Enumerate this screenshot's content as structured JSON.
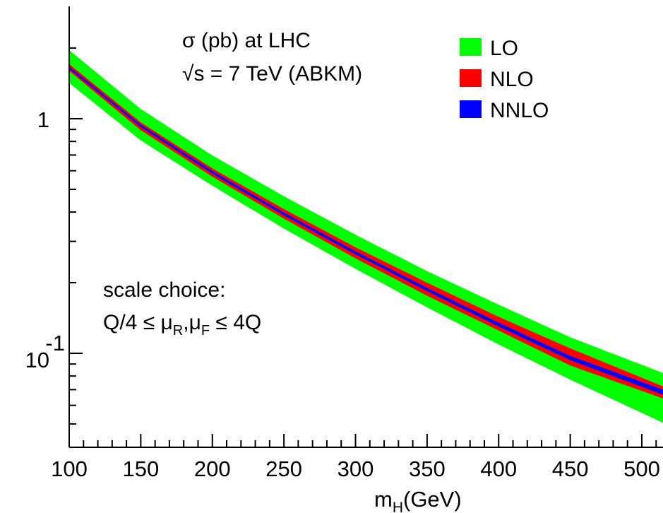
{
  "chart_data": {
    "type": "area",
    "xlabel": "m",
    "xlabel_sub": "H",
    "xlabel_unit": "(GeV)",
    "xlim": [
      100,
      515
    ],
    "ylim": [
      0.05,
      2.5
    ],
    "yscale": "log",
    "x_ticks": [
      "100",
      "150",
      "200",
      "250",
      "300",
      "350",
      "400",
      "450",
      "500"
    ],
    "x_tick_values": [
      100,
      150,
      200,
      250,
      300,
      350,
      400,
      450,
      500
    ],
    "y_ticks": [
      {
        "value": 1,
        "base": "1",
        "exp": ""
      },
      {
        "value": 0.1,
        "base": "10",
        "exp": "-1"
      }
    ],
    "annotations": {
      "line1": "σ (pb) at LHC",
      "line2": "√s = 7 TeV (ABKM)",
      "scale_title": "scale choice:",
      "scale_eq": {
        "q4": "Q/4 ≤ μ",
        "sub_r": "R",
        "comma_mu": ",μ",
        "sub_f": "F",
        "rest": " ≤ 4Q"
      }
    },
    "legend_position": "top-right",
    "series": [
      {
        "name": "LO",
        "color": "#00ff00",
        "x": [
          100,
          150,
          200,
          250,
          300,
          350,
          400,
          450,
          515
        ],
        "lower": [
          1.42,
          0.808,
          0.518,
          0.34,
          0.229,
          0.157,
          0.109,
          0.0772,
          0.0505
        ],
        "upper": [
          1.96,
          1.1,
          0.697,
          0.467,
          0.32,
          0.224,
          0.161,
          0.117,
          0.0823
        ]
      },
      {
        "name": "NLO",
        "color": "#ff0000",
        "x": [
          100,
          150,
          200,
          250,
          300,
          350,
          400,
          450,
          515
        ],
        "lower": [
          1.6,
          0.893,
          0.566,
          0.375,
          0.254,
          0.176,
          0.125,
          0.0887,
          0.0641
        ],
        "upper": [
          1.71,
          0.965,
          0.614,
          0.412,
          0.283,
          0.2,
          0.143,
          0.105,
          0.0722
        ]
      },
      {
        "name": "NNLO",
        "color": "#0000ff",
        "x": [
          100,
          150,
          200,
          250,
          300,
          350,
          400,
          450,
          515
        ],
        "lower": [
          1.63,
          0.92,
          0.582,
          0.387,
          0.264,
          0.184,
          0.13,
          0.0935,
          0.0665
        ],
        "upper": [
          1.67,
          0.944,
          0.599,
          0.398,
          0.272,
          0.19,
          0.135,
          0.0974,
          0.0698
        ]
      }
    ]
  }
}
